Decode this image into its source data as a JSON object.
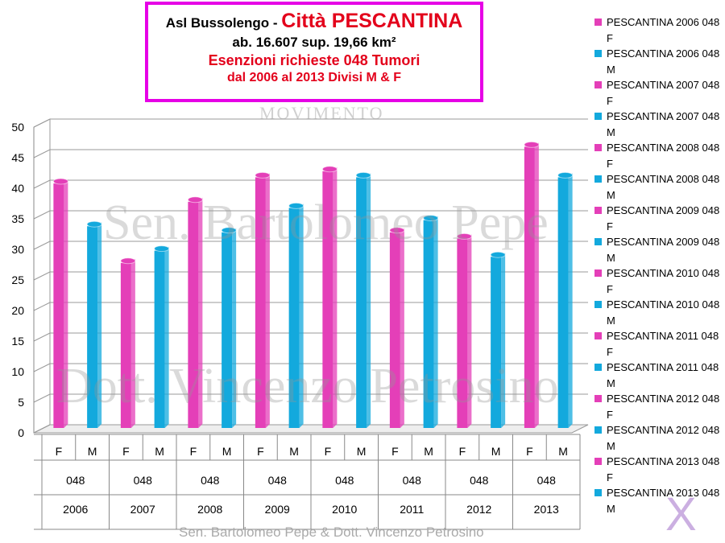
{
  "title": {
    "line1_prefix": "Asl Bussolengo - ",
    "line1_red": "Città PESCANTINA",
    "line2": "ab. 16.607 sup. 19,66 km²",
    "line3": "Esenzioni richieste 048 Tumori",
    "line4": "dal 2006 al 2013  Divisi M & F"
  },
  "watermarks": {
    "main1": "Sen. Bartolomeo Pepe",
    "main2": "Dott. Vincenzo Petrosino",
    "logo": "MOVIMENTO"
  },
  "footer": "Sen. Bartolomeo Pepe &  Dott. Vincenzo Petrosino",
  "colors": {
    "F": "#e43fb8",
    "M": "#13a9dd",
    "title_border": "#e600e6",
    "title_red": "#e3001b"
  },
  "chart_data": {
    "type": "bar",
    "ylim": [
      0,
      50
    ],
    "yticks": [
      0,
      5,
      10,
      15,
      20,
      25,
      30,
      35,
      40,
      45,
      50
    ],
    "grid": true,
    "legend_position": "right",
    "categories": [
      {
        "sex": "F",
        "code": "048",
        "year": "2006",
        "value": 40
      },
      {
        "sex": "M",
        "code": "048",
        "year": "2006",
        "value": 33
      },
      {
        "sex": "F",
        "code": "048",
        "year": "2007",
        "value": 27
      },
      {
        "sex": "M",
        "code": "048",
        "year": "2007",
        "value": 29
      },
      {
        "sex": "F",
        "code": "048",
        "year": "2008",
        "value": 37
      },
      {
        "sex": "M",
        "code": "048",
        "year": "2008",
        "value": 32
      },
      {
        "sex": "F",
        "code": "048",
        "year": "2009",
        "value": 41
      },
      {
        "sex": "M",
        "code": "048",
        "year": "2009",
        "value": 36
      },
      {
        "sex": "F",
        "code": "048",
        "year": "2010",
        "value": 42
      },
      {
        "sex": "M",
        "code": "048",
        "year": "2010",
        "value": 41
      },
      {
        "sex": "F",
        "code": "048",
        "year": "2011",
        "value": 32
      },
      {
        "sex": "M",
        "code": "048",
        "year": "2011",
        "value": 34
      },
      {
        "sex": "F",
        "code": "048",
        "year": "2012",
        "value": 31
      },
      {
        "sex": "M",
        "code": "048",
        "year": "2012",
        "value": 28
      },
      {
        "sex": "F",
        "code": "048",
        "year": "2013",
        "value": 46
      },
      {
        "sex": "M",
        "code": "048",
        "year": "2013",
        "value": 41
      }
    ],
    "legend": [
      {
        "label": "PESCANTINA 2006 048 F",
        "sex": "F"
      },
      {
        "label": "PESCANTINA 2006 048 M",
        "sex": "M"
      },
      {
        "label": "PESCANTINA 2007 048 F",
        "sex": "F"
      },
      {
        "label": "PESCANTINA 2007 048 M",
        "sex": "M"
      },
      {
        "label": "PESCANTINA 2008 048 F",
        "sex": "F"
      },
      {
        "label": "PESCANTINA 2008 048 M",
        "sex": "M"
      },
      {
        "label": "PESCANTINA 2009 048 F",
        "sex": "F"
      },
      {
        "label": "PESCANTINA 2009 048 M",
        "sex": "M"
      },
      {
        "label": "PESCANTINA 2010 048 F",
        "sex": "F"
      },
      {
        "label": "PESCANTINA 2010 048 M",
        "sex": "M"
      },
      {
        "label": "PESCANTINA 2011 048 F",
        "sex": "F"
      },
      {
        "label": "PESCANTINA 2011 048 M",
        "sex": "M"
      },
      {
        "label": "PESCANTINA 2012 048 F",
        "sex": "F"
      },
      {
        "label": "PESCANTINA 2012 048 M",
        "sex": "M"
      },
      {
        "label": "PESCANTINA 2013 048 F",
        "sex": "F"
      },
      {
        "label": "PESCANTINA 2013 048 M",
        "sex": "M"
      }
    ]
  }
}
